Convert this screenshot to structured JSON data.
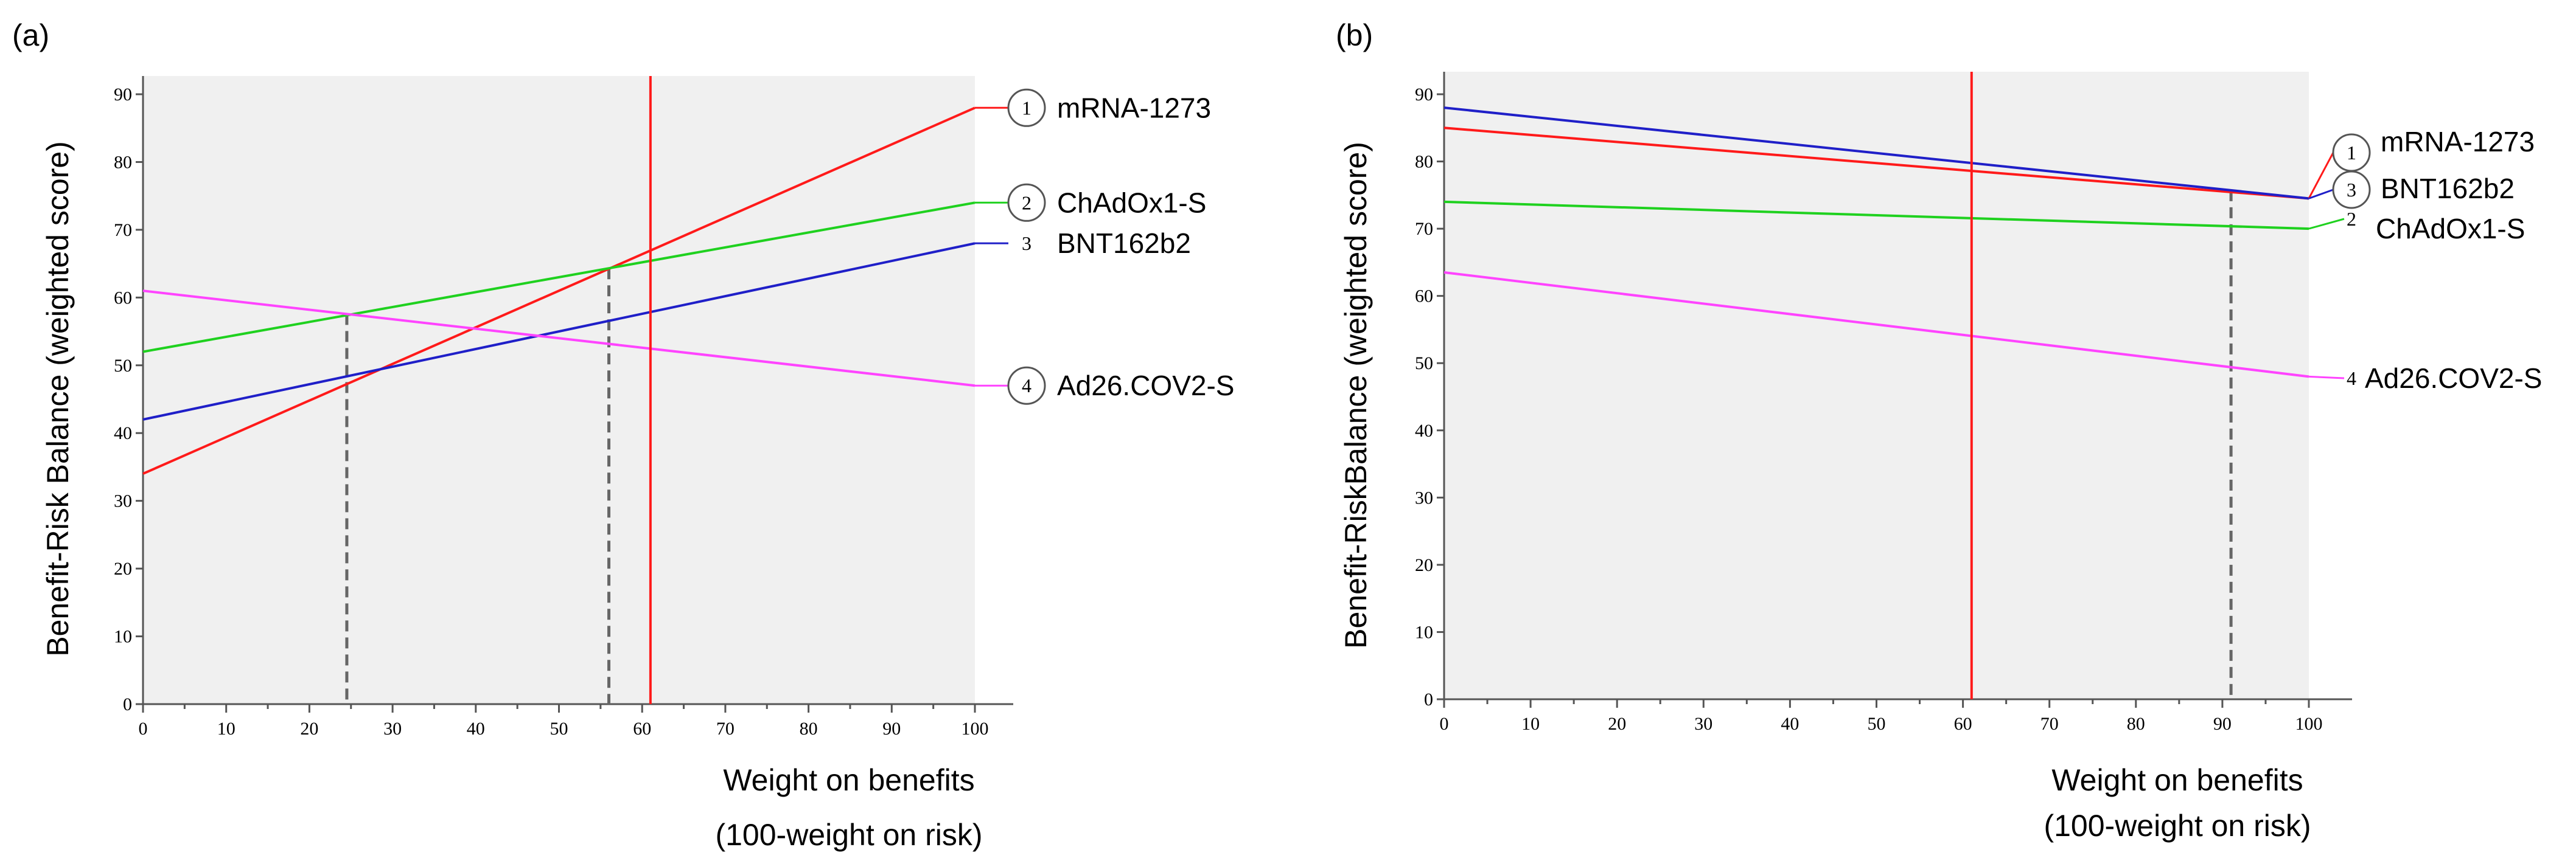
{
  "chart_data": [
    {
      "type": "line",
      "panel_label": "(a)",
      "xlabel": [
        "Weight on benefits",
        "(100-weight on risk)"
      ],
      "ylabel": "Benefit-Risk Balance (weighted score)",
      "xlim": [
        0,
        100
      ],
      "ylim": [
        0,
        90
      ],
      "xticks": [
        "0",
        "10",
        "20",
        "30",
        "40",
        "50",
        "60",
        "70",
        "80",
        "90",
        "100"
      ],
      "yticks": [
        "0",
        "10",
        "20",
        "30",
        "40",
        "50",
        "60",
        "70",
        "80",
        "90"
      ],
      "grid": false,
      "shaded_region": [
        0,
        100
      ],
      "current_weight": 61,
      "crossover_markers": [
        24.5,
        56
      ],
      "series": [
        {
          "name": "mRNA-1273",
          "rank": "1",
          "circled": true,
          "color": "#ff1a1a",
          "x": [
            0,
            100
          ],
          "y": [
            34,
            88
          ]
        },
        {
          "name": "ChAdOx1-S",
          "rank": "2",
          "circled": true,
          "color": "#1fd11f",
          "x": [
            0,
            100
          ],
          "y": [
            52,
            74
          ]
        },
        {
          "name": "BNT162b2",
          "rank": "3",
          "circled": false,
          "color": "#1f1fc8",
          "x": [
            0,
            100
          ],
          "y": [
            42,
            68
          ]
        },
        {
          "name": "Ad26.COV2-S",
          "rank": "4",
          "circled": true,
          "color": "#ff44ff",
          "x": [
            0,
            100
          ],
          "y": [
            61,
            47
          ]
        }
      ]
    },
    {
      "type": "line",
      "panel_label": "(b)",
      "xlabel": [
        "Weight on benefits",
        "(100-weight on risk)"
      ],
      "ylabel": "Benefit-RiskBalance (weighted score)",
      "xlim": [
        0,
        100
      ],
      "ylim": [
        0,
        90
      ],
      "xticks": [
        "0",
        "10",
        "20",
        "30",
        "40",
        "50",
        "60",
        "70",
        "80",
        "90",
        "100"
      ],
      "yticks": [
        "0",
        "10",
        "20",
        "30",
        "40",
        "50",
        "60",
        "70",
        "80",
        "90"
      ],
      "grid": false,
      "shaded_region": [
        0,
        100
      ],
      "current_weight": 61,
      "crossover_markers": [
        91
      ],
      "series": [
        {
          "name": "mRNA-1273",
          "rank": "1",
          "circled": true,
          "color": "#ff1a1a",
          "x": [
            0,
            100
          ],
          "y": [
            85,
            74.5
          ]
        },
        {
          "name": "BNT162b2",
          "rank": "3",
          "circled": true,
          "color": "#1f1fc8",
          "x": [
            0,
            100
          ],
          "y": [
            88,
            74.5
          ]
        },
        {
          "name": "ChAdOx1-S",
          "rank": "2",
          "circled": false,
          "color": "#1fd11f",
          "x": [
            0,
            100
          ],
          "y": [
            74,
            70
          ]
        },
        {
          "name": "Ad26.COV2-S",
          "rank": "4",
          "circled": false,
          "color": "#ff44ff",
          "x": [
            0,
            100
          ],
          "y": [
            63.5,
            48
          ]
        }
      ]
    }
  ]
}
